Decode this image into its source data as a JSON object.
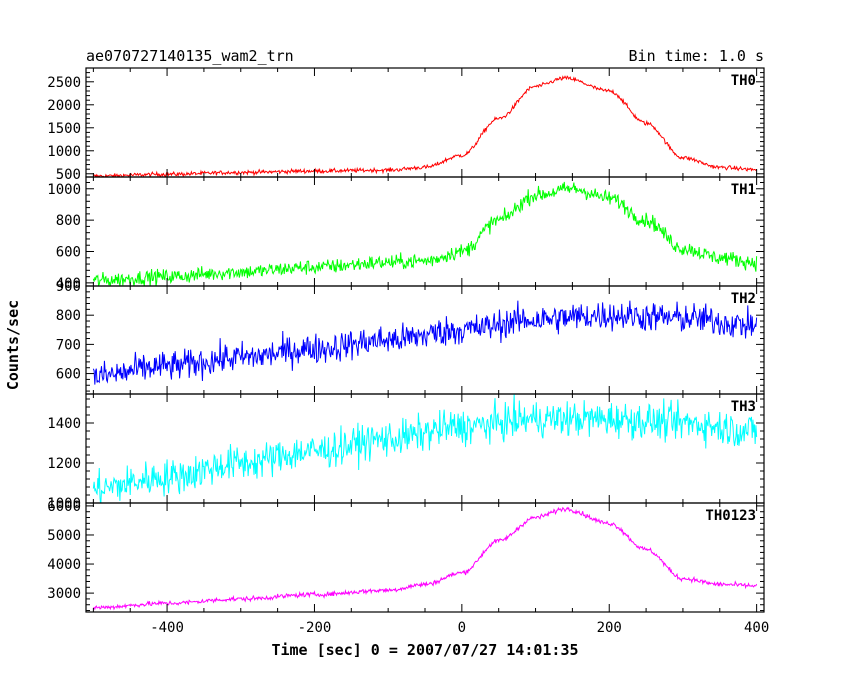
{
  "chart_data": {
    "type": "line",
    "title": "ae070727140135_wam2_trn",
    "bin_time_label": "Bin time: 1.0 s",
    "xlabel": "Time [sec] 0 = 2007/07/27 14:01:35",
    "ylabel": "Counts/sec",
    "xlim": [
      -510,
      410
    ],
    "x_ticks": [
      -400,
      -200,
      0,
      200,
      400
    ],
    "grid": false,
    "panels": [
      {
        "name": "TH0",
        "color": "#ff0000",
        "ylim": [
          430,
          2800
        ],
        "y_ticks": [
          500,
          1000,
          1500,
          2000,
          2500
        ],
        "noise": 22,
        "x": [
          -500,
          -400,
          -300,
          -200,
          -100,
          -50,
          0,
          50,
          100,
          140,
          200,
          250,
          300,
          350,
          400
        ],
        "values": [
          450,
          490,
          530,
          560,
          580,
          640,
          900,
          1700,
          2400,
          2580,
          2300,
          1600,
          850,
          640,
          590
        ]
      },
      {
        "name": "TH1",
        "color": "#00ff00",
        "ylim": [
          380,
          1075
        ],
        "y_ticks": [
          400,
          600,
          800,
          1000
        ],
        "noise": 24,
        "x": [
          -500,
          -400,
          -300,
          -200,
          -100,
          -50,
          0,
          50,
          100,
          150,
          200,
          250,
          300,
          350,
          400
        ],
        "values": [
          415,
          440,
          470,
          500,
          530,
          540,
          600,
          800,
          960,
          1000,
          940,
          800,
          620,
          560,
          530
        ]
      },
      {
        "name": "TH2",
        "color": "#0000ff",
        "ylim": [
          530,
          900
        ],
        "y_ticks": [
          600,
          700,
          800,
          900
        ],
        "noise": 26,
        "x": [
          -500,
          -400,
          -300,
          -200,
          -100,
          0,
          100,
          200,
          300,
          400
        ],
        "values": [
          590,
          625,
          655,
          685,
          715,
          750,
          785,
          800,
          790,
          765
        ]
      },
      {
        "name": "TH3",
        "color": "#00ffff",
        "ylim": [
          1000,
          1545
        ],
        "y_ticks": [
          1000,
          1200,
          1400
        ],
        "noise": 45,
        "x": [
          -500,
          -400,
          -300,
          -200,
          -100,
          0,
          100,
          200,
          300,
          400
        ],
        "values": [
          1070,
          1130,
          1200,
          1260,
          1320,
          1380,
          1420,
          1420,
          1400,
          1360
        ]
      },
      {
        "name": "TH0123",
        "color": "#ff00ff",
        "ylim": [
          2350,
          6100
        ],
        "y_ticks": [
          3000,
          4000,
          5000,
          6000
        ],
        "noise": 40,
        "x": [
          -500,
          -400,
          -300,
          -200,
          -100,
          -50,
          0,
          50,
          100,
          140,
          200,
          250,
          300,
          350,
          400
        ],
        "values": [
          2500,
          2650,
          2800,
          2950,
          3100,
          3300,
          3700,
          4800,
          5600,
          5900,
          5400,
          4500,
          3500,
          3300,
          3250
        ]
      }
    ]
  }
}
